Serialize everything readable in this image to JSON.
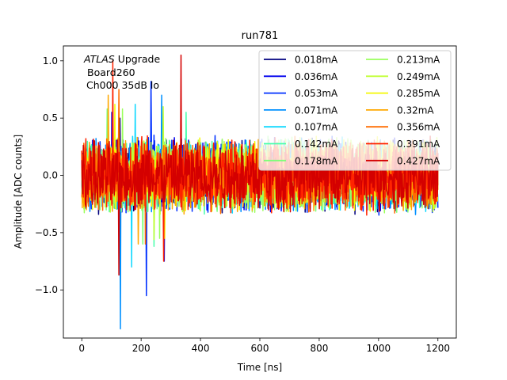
{
  "chart_data": {
    "type": "line",
    "title": "run781",
    "xlabel": "Time [ns]",
    "ylabel": "Amplitude [ADC counts]",
    "xlim": [
      -62,
      1262
    ],
    "ylim": [
      -1.42,
      1.13
    ],
    "xticks": [
      0,
      200,
      400,
      600,
      800,
      1000,
      1200
    ],
    "xtick_labels": [
      "0",
      "200",
      "400",
      "600",
      "800",
      "1000",
      "1200"
    ],
    "yticks": [
      -1.0,
      -0.5,
      0.0,
      0.5,
      1.0
    ],
    "ytick_labels": [
      "−1.0",
      "−0.5",
      "0.0",
      "0.5",
      "1.0"
    ],
    "x_range": [
      0,
      1200
    ],
    "annotation": {
      "italic": "ATLAS",
      "line1_rest": " Upgrade",
      "line2": "Board260",
      "line3": "Ch000 35dB lo"
    },
    "legend_position": "upper-right",
    "series": [
      {
        "name": "0.018mA",
        "color": "#00007f",
        "amplitude": 0.22,
        "min": -0.45,
        "max": 0.5
      },
      {
        "name": "0.036mA",
        "color": "#0000ed",
        "amplitude": 0.22,
        "min": -0.75,
        "max": 0.55
      },
      {
        "name": "0.053mA",
        "color": "#0030ff",
        "amplitude": 0.23,
        "min": -1.05,
        "max": 0.82
      },
      {
        "name": "0.071mA",
        "color": "#0090ff",
        "amplitude": 0.23,
        "min": -1.34,
        "max": 0.7
      },
      {
        "name": "0.107mA",
        "color": "#0fd8ff",
        "amplitude": 0.22,
        "min": -0.8,
        "max": 0.62
      },
      {
        "name": "0.142mA",
        "color": "#49ffad",
        "amplitude": 0.22,
        "min": -0.62,
        "max": 0.55
      },
      {
        "name": "0.178mA",
        "color": "#7cff79",
        "amplitude": 0.22,
        "min": -0.6,
        "max": 0.58
      },
      {
        "name": "0.213mA",
        "color": "#9aff5c",
        "amplitude": 0.22,
        "min": -0.55,
        "max": 0.58
      },
      {
        "name": "0.249mA",
        "color": "#c1ff36",
        "amplitude": 0.22,
        "min": -0.56,
        "max": 0.6
      },
      {
        "name": "0.285mA",
        "color": "#f4f802",
        "amplitude": 0.22,
        "min": -0.55,
        "max": 0.62
      },
      {
        "name": "0.32mA",
        "color": "#ffa800",
        "amplitude": 0.22,
        "min": -0.6,
        "max": 0.7
      },
      {
        "name": "0.356mA",
        "color": "#ff6c00",
        "amplitude": 0.22,
        "min": -0.6,
        "max": 0.75
      },
      {
        "name": "0.391mA",
        "color": "#ff2300",
        "amplitude": 0.23,
        "min": -0.75,
        "max": 1.0
      },
      {
        "name": "0.427mA",
        "color": "#d40000",
        "amplitude": 0.22,
        "min": -0.87,
        "max": 1.05
      }
    ]
  }
}
